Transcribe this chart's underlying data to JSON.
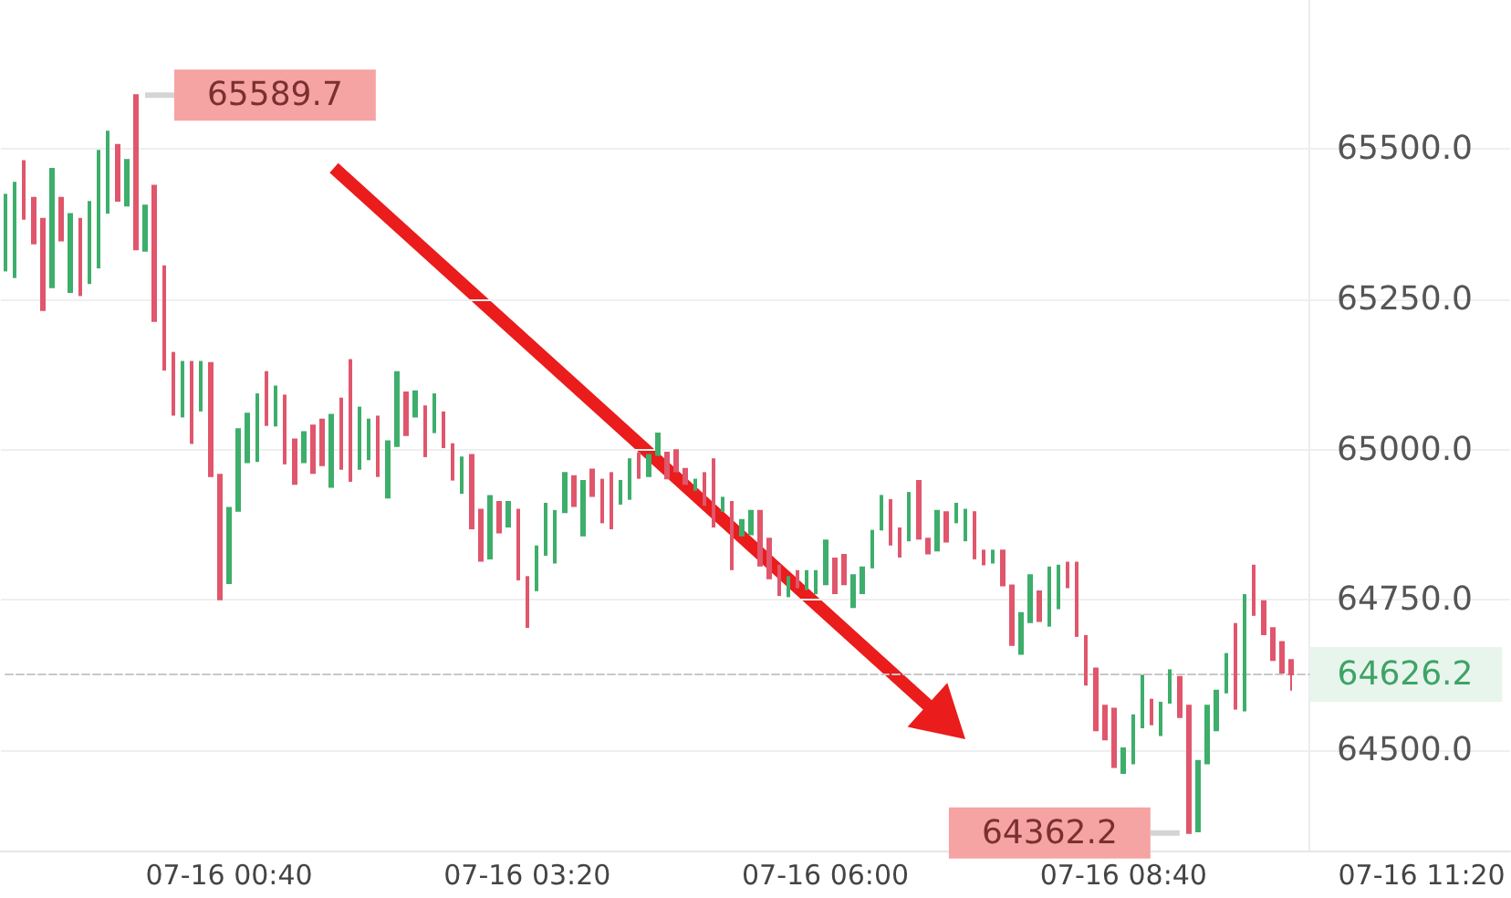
{
  "chart_data": {
    "type": "candlestick",
    "categories": [
      null,
      null,
      null,
      null,
      null,
      null,
      null,
      null,
      null,
      null,
      null,
      null,
      null,
      null,
      null,
      null,
      null,
      null,
      null,
      null,
      null,
      null,
      null,
      null,
      "07-16 00:40",
      null,
      null,
      null,
      null,
      null,
      null,
      null,
      null,
      null,
      null,
      null,
      null,
      null,
      null,
      null,
      null,
      null,
      null,
      null,
      null,
      null,
      null,
      null,
      null,
      null,
      null,
      null,
      null,
      null,
      null,
      null,
      "07-16 03:20",
      null,
      null,
      null,
      null,
      null,
      null,
      null,
      null,
      null,
      null,
      null,
      null,
      null,
      null,
      null,
      null,
      null,
      null,
      null,
      null,
      null,
      null,
      null,
      null,
      null,
      null,
      null,
      null,
      null,
      null,
      null,
      "07-16 06:00",
      null,
      null,
      null,
      null,
      null,
      null,
      null,
      null,
      null,
      null,
      null,
      null,
      null,
      null,
      null,
      null,
      null,
      null,
      null,
      null,
      null,
      null,
      null,
      null,
      null,
      null,
      null,
      null,
      null,
      null,
      null,
      "07-16 08:40",
      null,
      null,
      null,
      null,
      null,
      null,
      null,
      null,
      null,
      null,
      null,
      null,
      null,
      null,
      null,
      null,
      null,
      null,
      null,
      null,
      null,
      null,
      null,
      null,
      null,
      null,
      null,
      null,
      null,
      null,
      null,
      "07-16 11:20",
      null,
      null,
      null,
      null,
      null,
      null,
      null,
      null,
      null
    ],
    "ohlc": [
      [
        65298,
        65424,
        65298,
        65424
      ],
      [
        65287,
        65444,
        65287,
        65444
      ],
      [
        65480,
        65480,
        65384,
        65384
      ],
      [
        65419,
        65419,
        65343,
        65343
      ],
      [
        65384,
        65384,
        65232,
        65232
      ],
      [
        65270,
        65467,
        65270,
        65467
      ],
      [
        65419,
        65419,
        65348,
        65348
      ],
      [
        65262,
        65392,
        65262,
        65392
      ],
      [
        65384,
        65384,
        65257,
        65257
      ],
      [
        65277,
        65412,
        65277,
        65412
      ],
      [
        65303,
        65497,
        65303,
        65497
      ],
      [
        65394,
        65529,
        65394,
        65529
      ],
      [
        65507,
        65507,
        65414,
        65414
      ],
      [
        65406,
        65482,
        65406,
        65482
      ],
      [
        65589.7,
        65589.7,
        65333,
        65333
      ],
      [
        65331,
        65406,
        65331,
        65406
      ],
      [
        65439,
        65439,
        65214,
        65214
      ],
      [
        65305,
        65305,
        65133,
        65133
      ],
      [
        65161,
        65161,
        65058,
        65058
      ],
      [
        65055,
        65146,
        65055,
        65146
      ],
      [
        65146,
        65146,
        65011,
        65011
      ],
      [
        65065,
        65146,
        65065,
        65146
      ],
      [
        65144,
        65144,
        64956,
        64956
      ],
      [
        64958,
        64958,
        64751,
        64751
      ],
      [
        64778,
        64903,
        64778,
        64903
      ],
      [
        64898,
        65034,
        64898,
        65034
      ],
      [
        64979,
        65060,
        64979,
        65060
      ],
      [
        64981,
        65092,
        64981,
        65092
      ],
      [
        65129,
        65129,
        65041,
        65041
      ],
      [
        65040,
        65105,
        65040,
        65105
      ],
      [
        65090,
        65090,
        64977,
        64977
      ],
      [
        65017,
        65017,
        64943,
        64943
      ],
      [
        64979,
        65029,
        64979,
        65029
      ],
      [
        65040,
        65040,
        64961,
        64961
      ],
      [
        65050,
        65050,
        64974,
        64974
      ],
      [
        64938,
        65058,
        64938,
        65058
      ],
      [
        65085,
        65085,
        64968,
        64968
      ],
      [
        65149,
        65149,
        64948,
        64948
      ],
      [
        64968,
        65070,
        64968,
        65070
      ],
      [
        64984,
        65050,
        64984,
        65050
      ],
      [
        65055,
        65055,
        64956,
        64956
      ],
      [
        64920,
        65014,
        64920,
        65014
      ],
      [
        65006,
        65129,
        65006,
        65129
      ],
      [
        65095,
        65095,
        65024,
        65024
      ],
      [
        65055,
        65097,
        65055,
        65097
      ],
      [
        65072,
        65072,
        64989,
        64989
      ],
      [
        65029,
        65092,
        65029,
        65092
      ],
      [
        65062,
        65062,
        65004,
        65004
      ],
      [
        65009,
        65009,
        64950,
        64950
      ],
      [
        64928,
        64987,
        64928,
        64987
      ],
      [
        64991,
        64991,
        64869,
        64869
      ],
      [
        64900,
        64900,
        64815,
        64815
      ],
      [
        64819,
        64923,
        64819,
        64923
      ],
      [
        64913,
        64913,
        64862,
        64862
      ],
      [
        64872,
        64913,
        64872,
        64913
      ],
      [
        64900,
        64900,
        64784,
        64784
      ],
      [
        64788,
        64788,
        64705,
        64705
      ],
      [
        64766,
        64839,
        64766,
        64839
      ],
      [
        64825,
        64910,
        64825,
        64910
      ],
      [
        64812,
        64898,
        64812,
        64898
      ],
      [
        64896,
        64961,
        64896,
        64961
      ],
      [
        64956,
        64956,
        64906,
        64906
      ],
      [
        64857,
        64948,
        64857,
        64948
      ],
      [
        64967,
        64967,
        64923,
        64923
      ],
      [
        64950,
        64950,
        64879,
        64879
      ],
      [
        64961,
        64961,
        64869,
        64869
      ],
      [
        64910,
        64948,
        64910,
        64948
      ],
      [
        64918,
        64984,
        64918,
        64984
      ],
      [
        64994,
        64994,
        64953,
        64953
      ],
      [
        64956,
        64991,
        64956,
        64991
      ],
      [
        64991,
        65027,
        64991,
        65027
      ],
      [
        64995,
        64995,
        64952,
        64952
      ],
      [
        64999,
        64999,
        64964,
        64964
      ],
      [
        64968,
        64968,
        64943,
        64943
      ],
      [
        64933,
        64950,
        64933,
        64950
      ],
      [
        64961,
        64961,
        64908,
        64908
      ],
      [
        64984,
        64984,
        64872,
        64872
      ],
      [
        64898,
        64920,
        64898,
        64920
      ],
      [
        64913,
        64913,
        64801,
        64801
      ],
      [
        64857,
        64883,
        64857,
        64883
      ],
      [
        64859,
        64898,
        64859,
        64898
      ],
      [
        64898,
        64898,
        64807,
        64807
      ],
      [
        64852,
        64852,
        64786,
        64786
      ],
      [
        64807,
        64807,
        64758,
        64758
      ],
      [
        64756,
        64788,
        64756,
        64788
      ],
      [
        64798,
        64798,
        64771,
        64771
      ],
      [
        64768,
        64798,
        64768,
        64798
      ],
      [
        64761,
        64798,
        64761,
        64798
      ],
      [
        64776,
        64849,
        64776,
        64849
      ],
      [
        64819,
        64819,
        64761,
        64761
      ],
      [
        64825,
        64825,
        64776,
        64776
      ],
      [
        64738,
        64791,
        64738,
        64791
      ],
      [
        64761,
        64804,
        64761,
        64804
      ],
      [
        64804,
        64865,
        64804,
        64865
      ],
      [
        64867,
        64923,
        64867,
        64923
      ],
      [
        64916,
        64916,
        64842,
        64842
      ],
      [
        64869,
        64869,
        64822,
        64822
      ],
      [
        64849,
        64928,
        64849,
        64928
      ],
      [
        64948,
        64948,
        64852,
        64852
      ],
      [
        64852,
        64852,
        64827,
        64827
      ],
      [
        64832,
        64898,
        64832,
        64898
      ],
      [
        64896,
        64896,
        64847,
        64847
      ],
      [
        64879,
        64910,
        64879,
        64910
      ],
      [
        64849,
        64900,
        64849,
        64900
      ],
      [
        64896,
        64896,
        64819,
        64819
      ],
      [
        64832,
        64832,
        64809,
        64809
      ],
      [
        64812,
        64832,
        64812,
        64832
      ],
      [
        64832,
        64832,
        64774,
        64774
      ],
      [
        64774,
        64774,
        64675,
        64675
      ],
      [
        64660,
        64728,
        64660,
        64728
      ],
      [
        64713,
        64791,
        64713,
        64791
      ],
      [
        64764,
        64764,
        64715,
        64715
      ],
      [
        64707,
        64804,
        64707,
        64804
      ],
      [
        64736,
        64807,
        64736,
        64807
      ],
      [
        64812,
        64812,
        64771,
        64771
      ],
      [
        64812,
        64812,
        64690,
        64690
      ],
      [
        64690,
        64690,
        64609,
        64609
      ],
      [
        64636,
        64636,
        64533,
        64533
      ],
      [
        64574,
        64574,
        64518,
        64518
      ],
      [
        64569,
        64569,
        64472,
        64472
      ],
      [
        64462,
        64503,
        64462,
        64503
      ],
      [
        64478,
        64558,
        64478,
        64558
      ],
      [
        64538,
        64624,
        64538,
        64624
      ],
      [
        64584,
        64584,
        64543,
        64543
      ],
      [
        64525,
        64579,
        64525,
        64579
      ],
      [
        64579,
        64633,
        64579,
        64633
      ],
      [
        64622,
        64622,
        64555,
        64555
      ],
      [
        64574,
        64574,
        64362.2,
        64362.2
      ],
      [
        64365,
        64482,
        64365,
        64482
      ],
      [
        64478,
        64574,
        64478,
        64574
      ],
      [
        64533,
        64599,
        64533,
        64599
      ],
      [
        64596,
        64660,
        64596,
        64660
      ],
      [
        64710,
        64710,
        64569,
        64569
      ],
      [
        64566,
        64758,
        64566,
        64758
      ],
      [
        64807,
        64807,
        64725,
        64725
      ],
      [
        64748,
        64748,
        64693,
        64693
      ],
      [
        64703,
        64703,
        64650,
        64650
      ],
      [
        64680,
        64680,
        64629,
        64629
      ],
      [
        64650,
        64650,
        64599,
        64626.2
      ],
      null,
      null,
      null,
      null,
      null,
      null,
      null,
      null,
      null,
      null,
      null,
      null,
      null,
      null,
      null,
      null,
      null,
      null,
      null,
      null,
      null,
      null,
      null
    ],
    "colors": [
      "#3dae6b",
      "#3dae6b",
      "#e0566c",
      "#e0566c",
      "#e0566c",
      "#3dae6b",
      "#e0566c",
      "#3dae6b",
      "#e0566c",
      "#3dae6b",
      "#3dae6b",
      "#3dae6b",
      "#e0566c",
      "#3dae6b",
      "#e0566c",
      "#3dae6b",
      "#e0566c",
      "#e0566c",
      "#e0566c",
      "#3dae6b",
      "#e0566c",
      "#3dae6b",
      "#e0566c",
      "#e0566c",
      "#3dae6b",
      "#3dae6b",
      "#3dae6b",
      "#3dae6b",
      "#e0566c",
      "#3dae6b",
      "#e0566c",
      "#e0566c",
      "#3dae6b",
      "#e0566c",
      "#e0566c",
      "#3dae6b",
      "#e0566c",
      "#e0566c",
      "#3dae6b",
      "#3dae6b",
      "#e0566c",
      "#3dae6b",
      "#3dae6b",
      "#e0566c",
      "#3dae6b",
      "#e0566c",
      "#3dae6b",
      "#e0566c",
      "#e0566c",
      "#3dae6b",
      "#e0566c",
      "#e0566c",
      "#3dae6b",
      "#e0566c",
      "#3dae6b",
      "#e0566c",
      "#e0566c",
      "#3dae6b",
      "#3dae6b",
      "#3dae6b",
      "#3dae6b",
      "#e0566c",
      "#3dae6b",
      "#e0566c",
      "#e0566c",
      "#e0566c",
      "#3dae6b",
      "#3dae6b",
      "#e0566c",
      "#3dae6b",
      "#3dae6b",
      "#e0566c",
      "#e0566c",
      "#e0566c",
      "#3dae6b",
      "#e0566c",
      "#e0566c",
      "#3dae6b",
      "#e0566c",
      "#3dae6b",
      "#3dae6b",
      "#e0566c",
      "#e0566c",
      "#e0566c",
      "#3dae6b",
      "#e0566c",
      "#3dae6b",
      "#3dae6b",
      "#3dae6b",
      "#e0566c",
      "#e0566c",
      "#3dae6b",
      "#3dae6b",
      "#3dae6b",
      "#3dae6b",
      "#e0566c",
      "#e0566c",
      "#3dae6b",
      "#e0566c",
      "#e0566c",
      "#3dae6b",
      "#e0566c",
      "#3dae6b",
      "#3dae6b",
      "#e0566c",
      "#e0566c",
      "#3dae6b",
      "#e0566c",
      "#e0566c",
      "#3dae6b",
      "#3dae6b",
      "#e0566c",
      "#3dae6b",
      "#3dae6b",
      "#e0566c",
      "#e0566c",
      "#e0566c",
      "#e0566c",
      "#e0566c",
      "#e0566c",
      "#3dae6b",
      "#3dae6b",
      "#3dae6b",
      "#e0566c",
      "#3dae6b",
      "#3dae6b",
      "#e0566c",
      "#e0566c",
      "#3dae6b",
      "#3dae6b",
      "#3dae6b",
      "#3dae6b",
      "#e0566c",
      "#3dae6b",
      "#e0566c",
      "#e0566c",
      "#e0566c",
      "#e0566c",
      "#e0566c",
      null,
      null,
      null,
      null,
      null,
      null,
      null,
      null,
      null,
      null,
      null,
      null,
      null,
      null,
      null,
      null,
      null,
      null,
      null,
      null,
      null,
      null,
      null
    ],
    "ylim": [
      64333,
      65748
    ],
    "yticks": [
      {
        "value": 64500,
        "label": "64500.0"
      },
      {
        "value": 64750,
        "label": "64750.0"
      },
      {
        "value": 65000,
        "label": "65000.0"
      },
      {
        "value": 65250,
        "label": "65250.0"
      },
      {
        "value": 65500,
        "label": "65500.0"
      }
    ],
    "grid": "y",
    "ref_lines": [
      {
        "axis": "y",
        "value": 64626.2,
        "label": "64626.2",
        "color": "#c8c8c8",
        "line_style": "dashed"
      }
    ],
    "annotations": [
      "65589.7",
      "64362.2"
    ]
  }
}
